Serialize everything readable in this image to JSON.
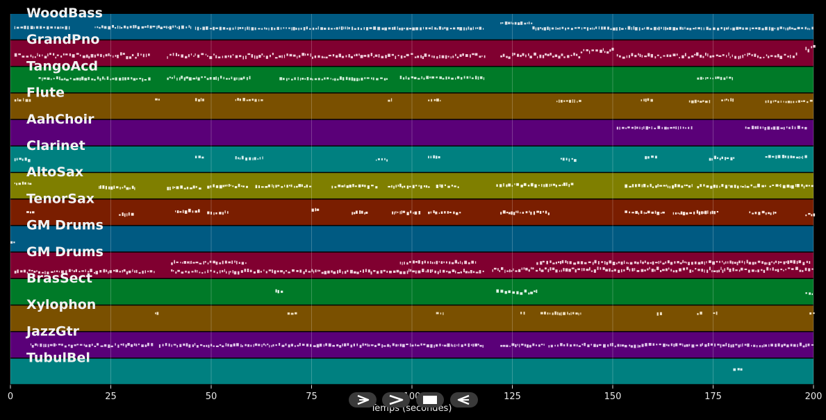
{
  "chart_data": {
    "type": "piano-roll",
    "xlabel": "Temps (secondes)",
    "xlim": [
      0,
      200
    ],
    "xticks": [
      0,
      25,
      50,
      75,
      100,
      125,
      150,
      175,
      200
    ],
    "grid": true,
    "tracks": [
      {
        "name": "WoodBass",
        "color": "#005a82",
        "note_color": "#d8e0e6",
        "segments": [
          [
            1,
            15,
            0.52,
            0.02
          ],
          [
            21,
            45,
            0.5,
            0.06
          ],
          [
            46,
            118,
            0.55,
            0.04
          ],
          [
            122,
            130,
            0.35,
            0.05
          ],
          [
            130,
            200,
            0.55,
            0.05
          ]
        ]
      },
      {
        "name": "GrandPno",
        "color": "#800030",
        "note_color": "#f0d0dc",
        "segments": [
          [
            1,
            35,
            0.58,
            0.15
          ],
          [
            39,
            118,
            0.58,
            0.15
          ],
          [
            122,
            142,
            0.58,
            0.15
          ],
          [
            142,
            150,
            0.4,
            0.15
          ],
          [
            151,
            196,
            0.58,
            0.15
          ],
          [
            198,
            200,
            0.3,
            0.2
          ]
        ]
      },
      {
        "name": "TangoAcd",
        "color": "#007a28",
        "note_color": "#d0ecd6",
        "segments": [
          [
            7,
            35,
            0.45,
            0.08
          ],
          [
            39,
            60,
            0.42,
            0.08
          ],
          [
            67,
            94,
            0.45,
            0.06
          ],
          [
            97,
            118,
            0.42,
            0.06
          ],
          [
            171,
            180,
            0.42,
            0.05
          ]
        ]
      },
      {
        "name": "Flute",
        "color": "#7a5000",
        "note_color": "#f0e0c0",
        "segments": [
          [
            1,
            5,
            0.25,
            0.04
          ],
          [
            36,
            37,
            0.25,
            0.08
          ],
          [
            46,
            48,
            0.25,
            0.05
          ],
          [
            56,
            63,
            0.25,
            0.06
          ],
          [
            94,
            95,
            0.25,
            0.08
          ],
          [
            104,
            107,
            0.25,
            0.05
          ],
          [
            136,
            142,
            0.3,
            0.04
          ],
          [
            157,
            160,
            0.25,
            0.04
          ],
          [
            169,
            174,
            0.3,
            0.05
          ],
          [
            177,
            180,
            0.25,
            0.04
          ],
          [
            188,
            200,
            0.3,
            0.05
          ]
        ]
      },
      {
        "name": "AahChoir",
        "color": "#5a0078",
        "note_color": "#e0c8ea",
        "segments": [
          [
            151,
            170,
            0.3,
            0.04
          ],
          [
            183,
            198,
            0.3,
            0.05
          ]
        ]
      },
      {
        "name": "Clarinet",
        "color": "#008080",
        "note_color": "#d8f0f0",
        "segments": [
          [
            1,
            5,
            0.5,
            0.08
          ],
          [
            46,
            48,
            0.4,
            0.05
          ],
          [
            56,
            63,
            0.45,
            0.06
          ],
          [
            91,
            94,
            0.5,
            0.06
          ],
          [
            104,
            107,
            0.4,
            0.05
          ],
          [
            137,
            141,
            0.5,
            0.08
          ],
          [
            158,
            161,
            0.4,
            0.05
          ],
          [
            174,
            180,
            0.45,
            0.08
          ],
          [
            188,
            198,
            0.4,
            0.05
          ]
        ]
      },
      {
        "name": "AltoSax",
        "color": "#7f7f00",
        "note_color": "#f6f6e0",
        "segments": [
          [
            1,
            5,
            0.4,
            0.06
          ],
          [
            22,
            31,
            0.55,
            0.08
          ],
          [
            39,
            47,
            0.55,
            0.08
          ],
          [
            49,
            59,
            0.5,
            0.08
          ],
          [
            61,
            75,
            0.5,
            0.06
          ],
          [
            80,
            91,
            0.5,
            0.08
          ],
          [
            94,
            104,
            0.5,
            0.08
          ],
          [
            106,
            112,
            0.5,
            0.08
          ],
          [
            121,
            140,
            0.45,
            0.08
          ],
          [
            153,
            170,
            0.5,
            0.08
          ],
          [
            171,
            188,
            0.5,
            0.08
          ],
          [
            189,
            200,
            0.5,
            0.08
          ]
        ]
      },
      {
        "name": "TenorSax",
        "color": "#7a1e00",
        "note_color": "#fbe8e0",
        "segments": [
          [
            4,
            6,
            0.5,
            0.06
          ],
          [
            27,
            31,
            0.55,
            0.08
          ],
          [
            41,
            47,
            0.45,
            0.08
          ],
          [
            49,
            54,
            0.5,
            0.08
          ],
          [
            75,
            77,
            0.4,
            0.06
          ],
          [
            85,
            89,
            0.5,
            0.08
          ],
          [
            95,
            102,
            0.5,
            0.08
          ],
          [
            104,
            112,
            0.5,
            0.08
          ],
          [
            122,
            134,
            0.5,
            0.08
          ],
          [
            153,
            163,
            0.5,
            0.08
          ],
          [
            165,
            176,
            0.5,
            0.08
          ],
          [
            184,
            191,
            0.5,
            0.08
          ],
          [
            198,
            200,
            0.55,
            0.1
          ]
        ]
      },
      {
        "name": "GM Drums",
        "color": "#005a82",
        "note_color": "#d8e0e6",
        "segments": [
          [
            0,
            1,
            0.6,
            0.05
          ]
        ]
      },
      {
        "name": "GM Drums",
        "color": "#800030",
        "note_color": "#f0d0dc",
        "segments": [
          [
            1,
            36,
            0.72,
            0.1
          ],
          [
            40,
            59,
            0.38,
            0.08
          ],
          [
            40,
            118,
            0.72,
            0.1
          ],
          [
            97,
            116,
            0.38,
            0.08
          ],
          [
            120,
            200,
            0.65,
            0.12
          ],
          [
            131,
            199,
            0.38,
            0.08
          ]
        ]
      },
      {
        "name": "BrasSect",
        "color": "#007a28",
        "note_color": "#e0f2e6",
        "segments": [
          [
            66,
            68,
            0.45,
            0.06
          ],
          [
            121,
            131,
            0.5,
            0.1
          ],
          [
            198,
            200,
            0.55,
            0.08
          ]
        ]
      },
      {
        "name": "Xylophon",
        "color": "#7a5000",
        "note_color": "#f0e0c0",
        "segments": [
          [
            36,
            37,
            0.3,
            0.04
          ],
          [
            69,
            71,
            0.3,
            0.04
          ],
          [
            106,
            108,
            0.3,
            0.04
          ],
          [
            127,
            128,
            0.3,
            0.04
          ],
          [
            132,
            142,
            0.3,
            0.04
          ],
          [
            161,
            162,
            0.3,
            0.04
          ],
          [
            171,
            172,
            0.3,
            0.04
          ],
          [
            175,
            176,
            0.3,
            0.04
          ],
          [
            199,
            200,
            0.3,
            0.04
          ]
        ]
      },
      {
        "name": "JazzGtr",
        "color": "#5a0078",
        "note_color": "#e0c8ea",
        "segments": [
          [
            5,
            35,
            0.5,
            0.08
          ],
          [
            37,
            118,
            0.5,
            0.08
          ],
          [
            122,
            133,
            0.5,
            0.08
          ],
          [
            134,
            200,
            0.5,
            0.08
          ]
        ]
      },
      {
        "name": "TubulBel",
        "color": "#008080",
        "note_color": "#d8f0f0",
        "segments": [
          [
            180,
            182,
            0.4,
            0.04
          ]
        ]
      }
    ]
  },
  "transport": {
    "play_icon": "play-outline-icon",
    "forward_icon": "chevron-right-icon",
    "stop_icon": "stop-icon",
    "back_icon": "play-reverse-icon"
  }
}
